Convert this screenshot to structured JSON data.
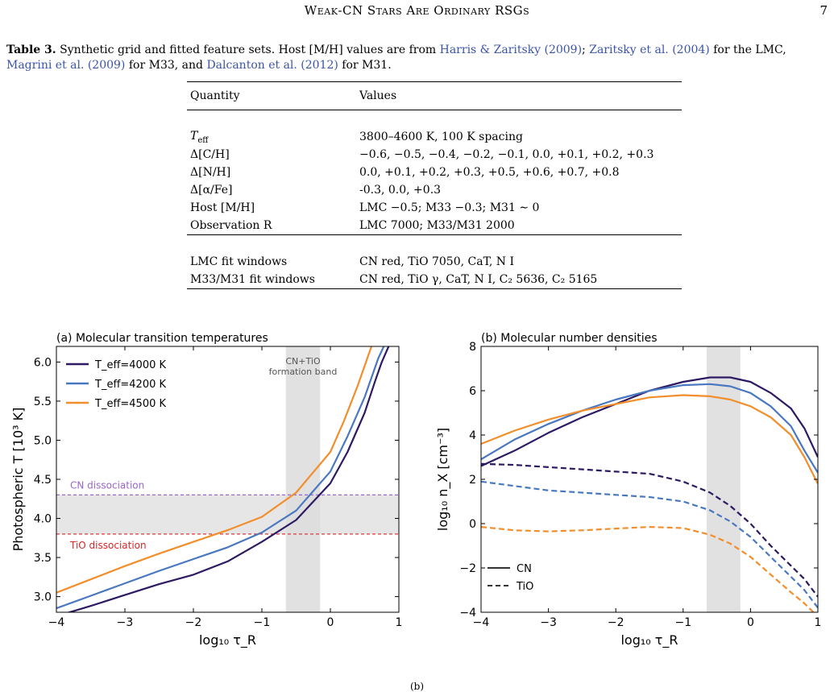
{
  "header": {
    "running_title": "Weak-CN Stars Are Ordinary RSGs",
    "page_number": "7"
  },
  "caption": {
    "label": "Table 3.",
    "part1": "Synthetic grid and fitted feature sets. Host [M/H] values are from ",
    "cite1": "Harris & Zaritsky (2009)",
    "sep1": "; ",
    "cite2": "Zaritsky et al. (2004)",
    "part2": " for the LMC, ",
    "cite3": "Magrini et al. (2009)",
    "part3": " for M33, and ",
    "cite4": "Dalcanton et al. (2012)",
    "part4": " for M31."
  },
  "table": {
    "headers": [
      "Quantity",
      "Values"
    ],
    "rows": [
      {
        "q": "T_eff",
        "v": "3800–4600 K, 100 K spacing"
      },
      {
        "q": "Δ[C/H]",
        "v": "−0.6, −0.5, −0.4, −0.2, −0.1, 0.0, +0.1, +0.2, +0.3"
      },
      {
        "q": "Δ[N/H]",
        "v": "0.0, +0.1, +0.2, +0.3, +0.5, +0.6, +0.7, +0.8"
      },
      {
        "q": "Δ[α/Fe]",
        "v": "-0.3, 0.0, +0.3"
      },
      {
        "q": "Host [M/H]",
        "v": "LMC −0.5; M33 −0.3; M31 ∼ 0"
      },
      {
        "q": "Observation R",
        "v": "LMC 7000; M33/M31 2000"
      }
    ],
    "rows2": [
      {
        "q": "LMC fit windows",
        "v": "CN red, TiO 7050, CaT, N I"
      },
      {
        "q": "M33/M31 fit windows",
        "v": "CN red, TiO γ, CaT, N I, C₂ 5636, C₂ 5165"
      }
    ]
  },
  "chart_data": [
    {
      "type": "line",
      "title": "(a) Molecular transition temperatures",
      "xlabel": "log₁₀ τ_R",
      "ylabel": "Photospheric T [10³ K]",
      "xlim": [
        -4,
        1
      ],
      "ylim": [
        2.8,
        6.2
      ],
      "xticks": [
        -4,
        -3,
        -2,
        -1,
        0,
        1
      ],
      "yticks": [
        3.0,
        3.5,
        4.0,
        4.5,
        5.0,
        5.5,
        6.0
      ],
      "legend_position": "top-left",
      "band": {
        "x": [
          -0.65,
          -0.15
        ],
        "label": "CN+TiO formation band"
      },
      "hband": {
        "y": [
          3.8,
          4.3
        ]
      },
      "hlines": [
        {
          "y": 4.3,
          "label": "CN dissociation",
          "color": "#9966cc"
        },
        {
          "y": 3.8,
          "label": "TiO dissociation",
          "color": "#d62728"
        }
      ],
      "series": [
        {
          "name": "T_eff=4000 K",
          "color": "#2d1a63",
          "x": [
            -4,
            -3.5,
            -3,
            -2.5,
            -2,
            -1.5,
            -1,
            -0.5,
            0,
            0.25,
            0.5,
            0.65,
            0.75,
            0.85
          ],
          "y": [
            2.75,
            2.88,
            3.02,
            3.16,
            3.28,
            3.45,
            3.7,
            3.98,
            4.45,
            4.85,
            5.35,
            5.75,
            6.0,
            6.2
          ]
        },
        {
          "name": "T_eff=4200 K",
          "color": "#4a78c0",
          "x": [
            -4,
            -3.5,
            -3,
            -2.5,
            -2,
            -1.5,
            -1,
            -0.5,
            0,
            0.25,
            0.5,
            0.6,
            0.7,
            0.78
          ],
          "y": [
            2.85,
            3.01,
            3.17,
            3.33,
            3.48,
            3.63,
            3.82,
            4.1,
            4.6,
            5.05,
            5.55,
            5.8,
            6.05,
            6.2
          ]
        },
        {
          "name": "T_eff=4500 K",
          "color": "#f28e2b",
          "x": [
            -4,
            -3.5,
            -3,
            -2.5,
            -2,
            -1.5,
            -1,
            -0.5,
            0,
            0.2,
            0.4,
            0.5,
            0.6
          ],
          "y": [
            3.05,
            3.22,
            3.39,
            3.55,
            3.7,
            3.85,
            4.02,
            4.33,
            4.85,
            5.25,
            5.7,
            5.95,
            6.2
          ]
        }
      ]
    },
    {
      "type": "line",
      "title": "(b) Molecular number densities",
      "xlabel": "log₁₀ τ_R",
      "ylabel": "log₁₀ n_X [cm⁻³]",
      "xlim": [
        -4,
        1
      ],
      "ylim": [
        -4,
        8
      ],
      "xticks": [
        -4,
        -3,
        -2,
        -1,
        0,
        1
      ],
      "yticks": [
        -4,
        -2,
        0,
        2,
        4,
        6,
        8
      ],
      "legend_position": "bottom-left",
      "band": {
        "x": [
          -0.65,
          -0.15
        ]
      },
      "legend": [
        {
          "name": "CN",
          "style": "solid"
        },
        {
          "name": "TiO",
          "style": "dashed"
        }
      ],
      "series": [
        {
          "name": "",
          "molecule": "CN",
          "color": "#2d1a63",
          "x": [
            -4,
            -3.5,
            -3,
            -2.5,
            -2,
            -1.5,
            -1,
            -0.6,
            -0.3,
            0,
            0.3,
            0.6,
            0.8,
            1
          ],
          "y": [
            2.6,
            3.3,
            4.1,
            4.8,
            5.4,
            6.0,
            6.4,
            6.6,
            6.6,
            6.4,
            5.9,
            5.2,
            4.3,
            3.0
          ]
        },
        {
          "name": "",
          "molecule": "CN",
          "color": "#4a78c0",
          "x": [
            -4,
            -3.5,
            -3,
            -2.5,
            -2,
            -1.5,
            -1,
            -0.6,
            -0.3,
            0,
            0.3,
            0.6,
            0.8,
            1
          ],
          "y": [
            2.9,
            3.8,
            4.5,
            5.1,
            5.6,
            6.0,
            6.25,
            6.3,
            6.2,
            5.9,
            5.3,
            4.4,
            3.3,
            2.3
          ]
        },
        {
          "name": "",
          "molecule": "CN",
          "color": "#f28e2b",
          "x": [
            -4,
            -3.5,
            -3,
            -2.5,
            -2,
            -1.5,
            -1,
            -0.6,
            -0.3,
            0,
            0.3,
            0.6,
            0.8,
            1
          ],
          "y": [
            3.6,
            4.2,
            4.7,
            5.1,
            5.4,
            5.7,
            5.8,
            5.75,
            5.6,
            5.3,
            4.8,
            4.0,
            3.0,
            1.8
          ]
        },
        {
          "name": "",
          "molecule": "TiO",
          "color": "#2d1a63",
          "x": [
            -4,
            -3.5,
            -3,
            -2.5,
            -2,
            -1.5,
            -1,
            -0.6,
            -0.3,
            0,
            0.3,
            0.6,
            0.8,
            1
          ],
          "y": [
            2.7,
            2.65,
            2.55,
            2.45,
            2.35,
            2.25,
            1.9,
            1.4,
            0.8,
            0.0,
            -1.0,
            -1.9,
            -2.5,
            -3.3
          ]
        },
        {
          "name": "",
          "molecule": "TiO",
          "color": "#4a78c0",
          "x": [
            -4,
            -3.5,
            -3,
            -2.5,
            -2,
            -1.5,
            -1,
            -0.6,
            -0.3,
            0,
            0.3,
            0.6,
            0.8,
            1
          ],
          "y": [
            1.9,
            1.7,
            1.5,
            1.4,
            1.3,
            1.2,
            1.0,
            0.6,
            0.1,
            -0.6,
            -1.5,
            -2.4,
            -3.0,
            -3.8
          ]
        },
        {
          "name": "",
          "molecule": "TiO",
          "color": "#f28e2b",
          "x": [
            -4,
            -3.5,
            -3,
            -2.5,
            -2,
            -1.5,
            -1,
            -0.6,
            -0.3,
            0,
            0.3,
            0.6,
            0.8,
            1
          ],
          "y": [
            -0.15,
            -0.3,
            -0.35,
            -0.3,
            -0.22,
            -0.15,
            -0.2,
            -0.5,
            -0.9,
            -1.5,
            -2.3,
            -3.1,
            -3.6,
            -4.2
          ]
        }
      ]
    }
  ],
  "footer": {
    "mark": "(b)"
  }
}
